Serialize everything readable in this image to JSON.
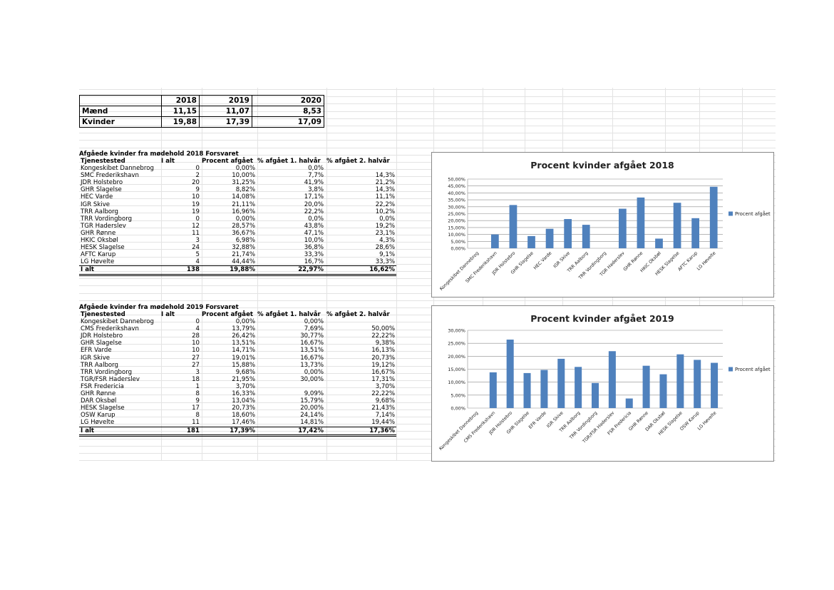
{
  "summary": {
    "years": [
      "2018",
      "2019",
      "2020"
    ],
    "rows": [
      {
        "label": "Mænd",
        "values": [
          "11,15",
          "11,07",
          "8,53"
        ]
      },
      {
        "label": "Kvinder",
        "values": [
          "19,88",
          "17,39",
          "17,09"
        ]
      }
    ]
  },
  "table2018": {
    "title": "Afgåede kvinder fra mødehold 2018 Forsvaret",
    "headers": [
      "Tjenestested",
      "I alt",
      "Procent afgået",
      "% afgået 1. halvår",
      "% afgået 2. halvår"
    ],
    "rows": [
      [
        "Kongeskibet Dannebrog",
        "0",
        "0,00%",
        "0,0%",
        ""
      ],
      [
        "SMC Frederikshavn",
        "2",
        "10,00%",
        "7,7%",
        "14,3%"
      ],
      [
        "JDR Holstebro",
        "20",
        "31,25%",
        "41,9%",
        "21,2%"
      ],
      [
        "GHR Slagelse",
        "9",
        "8,82%",
        "3,8%",
        "14,3%"
      ],
      [
        "HEC Varde",
        "10",
        "14,08%",
        "17,1%",
        "11,1%"
      ],
      [
        "IGR Skive",
        "19",
        "21,11%",
        "20,0%",
        "22,2%"
      ],
      [
        "TRR Aalborg",
        "19",
        "16,96%",
        "22,2%",
        "10,2%"
      ],
      [
        "TRR Vordingborg",
        "0",
        "0,00%",
        "0,0%",
        "0,0%"
      ],
      [
        "TGR Haderslev",
        "12",
        "28,57%",
        "43,8%",
        "19,2%"
      ],
      [
        "GHR Rønne",
        "11",
        "36,67%",
        "47,1%",
        "23,1%"
      ],
      [
        "HKIC Oksbøl",
        "3",
        "6,98%",
        "10,0%",
        "4,3%"
      ],
      [
        "HESK Slagelse",
        "24",
        "32,88%",
        "36,8%",
        "28,6%"
      ],
      [
        "AFTC Karup",
        "5",
        "21,74%",
        "33,3%",
        "9,1%"
      ],
      [
        "LG Høvelte",
        "4",
        "44,44%",
        "16,7%",
        "33,3%"
      ]
    ],
    "total": [
      "I alt",
      "138",
      "19,88%",
      "22,97%",
      "16,62%"
    ]
  },
  "table2019": {
    "title": "Afgåede kvinder fra mødehold 2019 Forsvaret",
    "headers": [
      "Tjenestested",
      "I alt",
      "Procent afgået",
      "% afgået 1. halvår",
      "% afgået 2. halvår"
    ],
    "rows": [
      [
        "Kongeskibet Dannebrog",
        "0",
        "0,00%",
        "0,00%",
        ""
      ],
      [
        "CMS Frederikshavn",
        "4",
        "13,79%",
        "7,69%",
        "50,00%"
      ],
      [
        "JDR Holstebro",
        "28",
        "26,42%",
        "30,77%",
        "22,22%"
      ],
      [
        "GHR Slagelse",
        "10",
        "13,51%",
        "16,67%",
        "9,38%"
      ],
      [
        "EFR Varde",
        "10",
        "14,71%",
        "13,51%",
        "16,13%"
      ],
      [
        "IGR Skive",
        "27",
        "19,01%",
        "16,67%",
        "20,73%"
      ],
      [
        "TRR Aalborg",
        "27",
        "15,88%",
        "13,73%",
        "19,12%"
      ],
      [
        "TRR Vordingborg",
        "3",
        "9,68%",
        "0,00%",
        "16,67%"
      ],
      [
        "TGR/FSR Haderslev",
        "18",
        "21,95%",
        "30,00%",
        "17,31%"
      ],
      [
        "FSR Fredericia",
        "1",
        "3,70%",
        "",
        "3,70%"
      ],
      [
        "GHR Rønne",
        "8",
        "16,33%",
        "9,09%",
        "22,22%"
      ],
      [
        "DAR Oksbøl",
        "9",
        "13,04%",
        "15,79%",
        "9,68%"
      ],
      [
        "HESK Slagelse",
        "17",
        "20,73%",
        "20,00%",
        "21,43%"
      ],
      [
        "OSW Karup",
        "8",
        "18,60%",
        "24,14%",
        "7,14%"
      ],
      [
        "LG Høvelte",
        "11",
        "17,46%",
        "14,81%",
        "19,44%"
      ]
    ],
    "total": [
      "I alt",
      "181",
      "17,39%",
      "17,42%",
      "17,36%"
    ]
  },
  "chart_data": [
    {
      "type": "bar",
      "title": "Procent kvinder afgået 2018",
      "categories": [
        "Kongeskibet Dannebrog",
        "SMC Frederikshavn",
        "JDR Holstebro",
        "GHR Slagelse",
        "HEC Varde",
        "IGR Skive",
        "TRR Aalborg",
        "TRR Vordingborg",
        "TGR Haderslev",
        "GHR Rønne",
        "HKIC Oksbøl",
        "HESK Slagelse",
        "AFTC Karup",
        "LG Høvelte"
      ],
      "series": [
        {
          "name": "Procent afgået",
          "values": [
            0,
            10.0,
            31.25,
            8.82,
            14.08,
            21.11,
            16.96,
            0,
            28.57,
            36.67,
            6.98,
            32.88,
            21.74,
            44.44
          ]
        }
      ],
      "ylim": [
        0,
        50
      ],
      "yticks": [
        "0,00%",
        "5,00%",
        "10,00%",
        "15,00%",
        "20,00%",
        "25,00%",
        "30,00%",
        "35,00%",
        "40,00%",
        "45,00%",
        "50,00%"
      ],
      "legend": "right",
      "grid": true,
      "bar_color": "#4f81bd"
    },
    {
      "type": "bar",
      "title": "Procent kvinder afgået 2019",
      "categories": [
        "Kongeskibet Dannebrog",
        "CMS Frederikshavn",
        "JDR Holstebro",
        "GHR Slagelse",
        "EFR Varde",
        "IGR Skive",
        "TRR Aalborg",
        "TRR Vordingborg",
        "TGR/FSR Haderslev",
        "FSR Fredericia",
        "GHR Rønne",
        "DAR Oksbøl",
        "HESK Slagelse",
        "OSW Karup",
        "LG Høvelte"
      ],
      "series": [
        {
          "name": "Procent afgået",
          "values": [
            0,
            13.79,
            26.42,
            13.51,
            14.71,
            19.01,
            15.88,
            9.68,
            21.95,
            3.7,
            16.33,
            13.04,
            20.73,
            18.6,
            17.46
          ]
        }
      ],
      "ylim": [
        0,
        30
      ],
      "yticks": [
        "0,00%",
        "5,00%",
        "10,00%",
        "15,00%",
        "20,00%",
        "25,00%",
        "30,00%"
      ],
      "legend": "right",
      "grid": true,
      "bar_color": "#4f81bd"
    }
  ]
}
